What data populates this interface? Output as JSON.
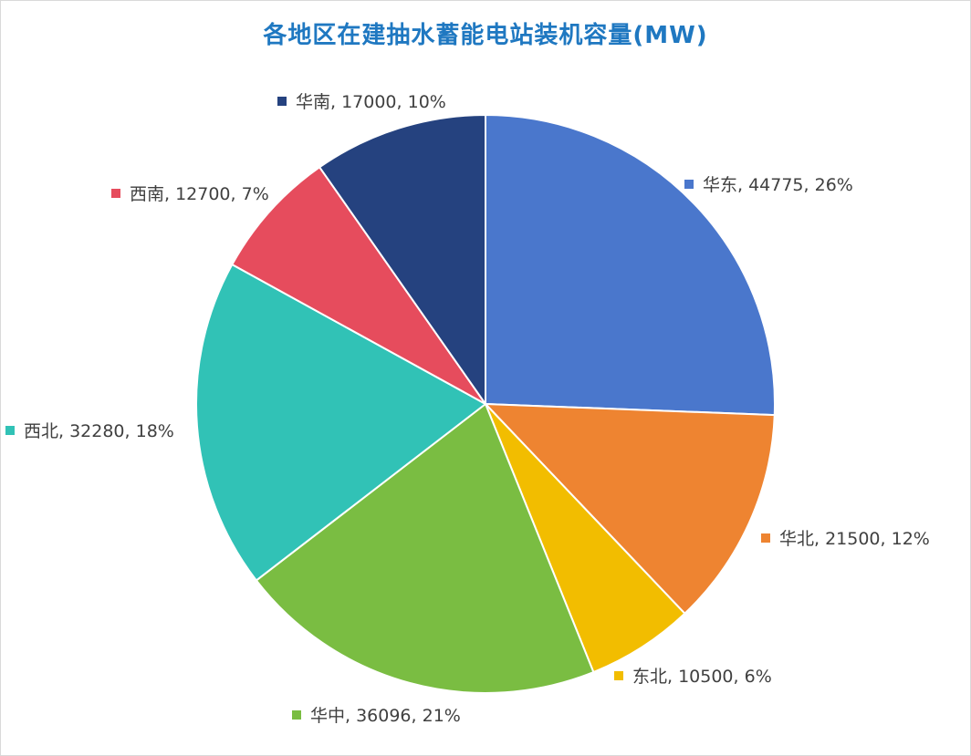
{
  "chart_data": {
    "type": "pie",
    "title": "各地区在建抽水蓄能电站装机容量(MW)",
    "unit": "MW",
    "slices": [
      {
        "name": "华东",
        "value": 44775,
        "percent": "26%",
        "label": "华东, 44775, 26%",
        "color": "#4a77cc"
      },
      {
        "name": "华北",
        "value": 21500,
        "percent": "12%",
        "label": "华北, 21500, 12%",
        "color": "#ee8431"
      },
      {
        "name": "东北",
        "value": 10500,
        "percent": "6%",
        "label": "东北, 10500, 6%",
        "color": "#f2bd00"
      },
      {
        "name": "华中",
        "value": 36096,
        "percent": "21%",
        "label": "华中, 36096, 21%",
        "color": "#7abd42"
      },
      {
        "name": "西北",
        "value": 32280,
        "percent": "18%",
        "label": "西北, 32280, 18%",
        "color": "#31c2b6"
      },
      {
        "name": "西南",
        "value": 12700,
        "percent": "7%",
        "label": "西南, 12700, 7%",
        "color": "#e64c5d"
      },
      {
        "name": "华南",
        "value": 17000,
        "percent": "10%",
        "label": "华南, 17000, 10%",
        "color": "#25427f"
      }
    ]
  }
}
